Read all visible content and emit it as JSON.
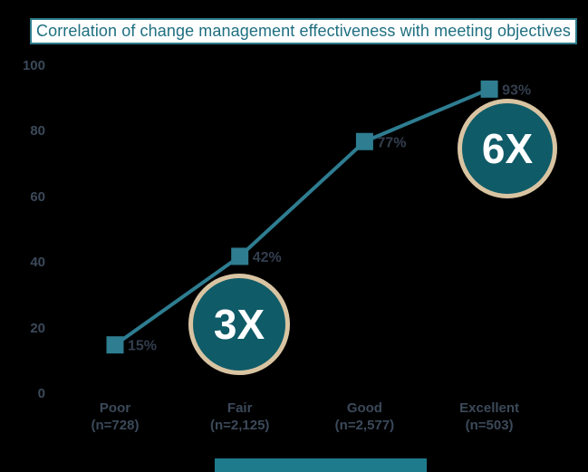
{
  "title": "Correlation of change management effectiveness with meeting objectives",
  "colors": {
    "background": "#000000",
    "title_text": "#1e6f80",
    "title_border": "#2d7c8b",
    "title_bg": "#ffffff",
    "line": "#2e7d91",
    "marker": "#2e7d91",
    "value_text": "#333e4e",
    "axis_text": "#3b4959",
    "badge_fill": "#0f5b68",
    "badge_border": "#d9c4a2",
    "badge_text": "#ffffff",
    "footer_bar": "#1e7b8b"
  },
  "chart_data": {
    "type": "line",
    "title": "Correlation of change management effectiveness with meeting objectives",
    "categories": [
      "Poor",
      "Fair",
      "Good",
      "Excellent"
    ],
    "category_sublabels": [
      "(n=728)",
      "(n=2,125)",
      "(n=2,577)",
      "(n=503)"
    ],
    "values": [
      15,
      42,
      77,
      93
    ],
    "value_labels": [
      "15%",
      "42%",
      "77%",
      "93%"
    ],
    "y_ticks": [
      0,
      20,
      40,
      60,
      80,
      100
    ],
    "ylim": [
      0,
      100
    ],
    "xlabel": "",
    "ylabel": "",
    "grid": false,
    "legend": "none",
    "annotations": [
      {
        "label": "3X",
        "category": "Fair"
      },
      {
        "label": "6X",
        "category": "Excellent"
      }
    ]
  }
}
